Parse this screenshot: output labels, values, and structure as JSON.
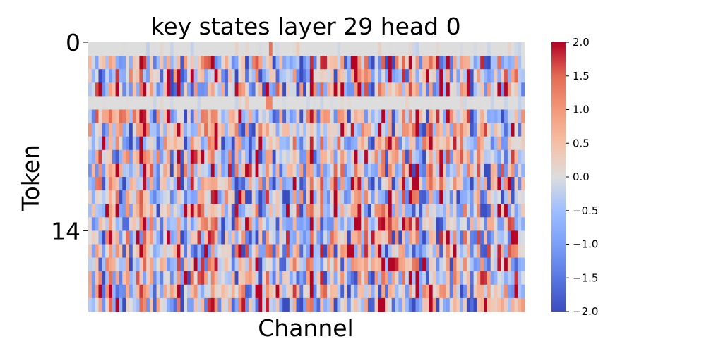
{
  "chart_data": {
    "type": "heatmap",
    "title": "key states layer 29 head 0",
    "xlabel": "Channel",
    "ylabel": "Token",
    "y_tick_labels": [
      {
        "token": 0,
        "label": "0"
      },
      {
        "token": 14,
        "label": "14"
      }
    ],
    "n_tokens": 20,
    "n_channels": 128,
    "colormap": "coolwarm",
    "value_range": [
      -2.0,
      2.0
    ],
    "colorbar_ticks": [
      "2.0",
      "1.5",
      "1.0",
      "0.5",
      "0.0",
      "−0.5",
      "−1.0",
      "−1.5",
      "−2.0"
    ],
    "colors": {
      "low": "#3b4cc0",
      "mid": "#dddddd",
      "high": "#b40426"
    }
  }
}
